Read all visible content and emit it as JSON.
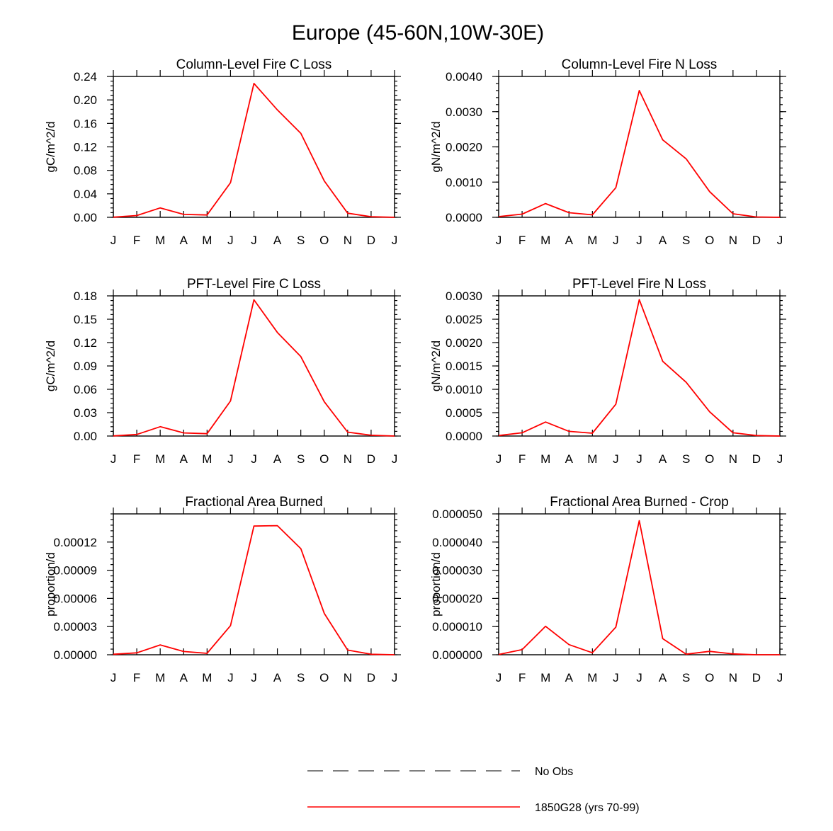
{
  "figure_title": "Europe (45-60N,10W-30E)",
  "legend": [
    {
      "label": "No Obs",
      "style": "dashed",
      "color": "#555555"
    },
    {
      "label": "1850G28 (yrs 70-99)",
      "style": "solid",
      "color": "#ff0000"
    }
  ],
  "chart_data": [
    {
      "type": "line",
      "title": "Column-Level Fire C Loss",
      "ylabel": "gC/m^2/d",
      "categories": [
        "J",
        "F",
        "M",
        "A",
        "M",
        "J",
        "J",
        "A",
        "S",
        "O",
        "N",
        "D",
        "J"
      ],
      "ylim": [
        0,
        0.24
      ],
      "yticks": [
        "0.00",
        "0.04",
        "0.08",
        "0.12",
        "0.16",
        "0.20",
        "0.24"
      ],
      "series": [
        {
          "values": [
            0.0003,
            0.003,
            0.016,
            0.005,
            0.004,
            0.059,
            0.228,
            0.183,
            0.143,
            0.062,
            0.007,
            0.001,
            0.0
          ]
        }
      ]
    },
    {
      "type": "line",
      "title": "Column-Level Fire N Loss",
      "ylabel": "gN/m^2/d",
      "categories": [
        "J",
        "F",
        "M",
        "A",
        "M",
        "J",
        "J",
        "A",
        "S",
        "O",
        "N",
        "D",
        "J"
      ],
      "ylim": [
        0,
        0.004
      ],
      "yticks": [
        "0.0000",
        "0.0010",
        "0.0020",
        "0.0030",
        "0.0040"
      ],
      "series": [
        {
          "values": [
            2e-05,
            9e-05,
            0.00039,
            0.00013,
            7e-05,
            0.00084,
            0.0036,
            0.0022,
            0.00166,
            0.00073,
            0.0001,
            1e-05,
            0.0
          ]
        }
      ]
    },
    {
      "type": "line",
      "title": "PFT-Level Fire C Loss",
      "ylabel": "gC/m^2/d",
      "categories": [
        "J",
        "F",
        "M",
        "A",
        "M",
        "J",
        "J",
        "A",
        "S",
        "O",
        "N",
        "D",
        "J"
      ],
      "ylim": [
        0,
        0.18
      ],
      "yticks": [
        "0.00",
        "0.03",
        "0.06",
        "0.09",
        "0.12",
        "0.15",
        "0.18"
      ],
      "series": [
        {
          "values": [
            0.0002,
            0.002,
            0.012,
            0.004,
            0.003,
            0.045,
            0.175,
            0.133,
            0.102,
            0.044,
            0.005,
            0.001,
            0.0
          ]
        }
      ]
    },
    {
      "type": "line",
      "title": "PFT-Level Fire N Loss",
      "ylabel": "gN/m^2/d",
      "categories": [
        "J",
        "F",
        "M",
        "A",
        "M",
        "J",
        "J",
        "A",
        "S",
        "O",
        "N",
        "D",
        "J"
      ],
      "ylim": [
        0,
        0.003
      ],
      "yticks": [
        "0.0000",
        "0.0005",
        "0.0010",
        "0.0015",
        "0.0020",
        "0.0025",
        "0.0030"
      ],
      "series": [
        {
          "values": [
            1e-05,
            7e-05,
            0.0003,
            0.0001,
            6e-05,
            0.00068,
            0.00292,
            0.0016,
            0.00115,
            0.00052,
            7e-05,
            1e-05,
            0.0
          ]
        }
      ]
    },
    {
      "type": "line",
      "title": "Fractional Area Burned",
      "ylabel": "proportion/d",
      "categories": [
        "J",
        "F",
        "M",
        "A",
        "M",
        "J",
        "J",
        "A",
        "S",
        "O",
        "N",
        "D",
        "J"
      ],
      "ylim": [
        0,
        0.00015
      ],
      "yticks": [
        "0.00000",
        "0.00003",
        "0.00006",
        "0.00009",
        "0.00012"
      ],
      "series": [
        {
          "values": [
            5e-07,
            2e-06,
            1.05e-05,
            3.5e-06,
            1.5e-06,
            3.1e-05,
            0.000137,
            0.0001375,
            0.000113,
            4.4e-05,
            5e-06,
            5e-07,
            0.0
          ]
        }
      ]
    },
    {
      "type": "line",
      "title": "Fractional Area Burned - Crop",
      "ylabel": "proportion/d",
      "categories": [
        "J",
        "F",
        "M",
        "A",
        "M",
        "J",
        "J",
        "A",
        "S",
        "O",
        "N",
        "D",
        "J"
      ],
      "ylim": [
        0,
        5e-05
      ],
      "yticks": [
        "0.000000",
        "0.000010",
        "0.000020",
        "0.000030",
        "0.000040",
        "0.000050"
      ],
      "series": [
        {
          "values": [
            1e-07,
            1.8e-06,
            1.01e-05,
            3.6e-06,
            7e-07,
            9.8e-06,
            4.76e-05,
            5.7e-06,
            2e-07,
            1.2e-06,
            3e-07,
            0.0,
            0.0
          ]
        }
      ]
    }
  ]
}
